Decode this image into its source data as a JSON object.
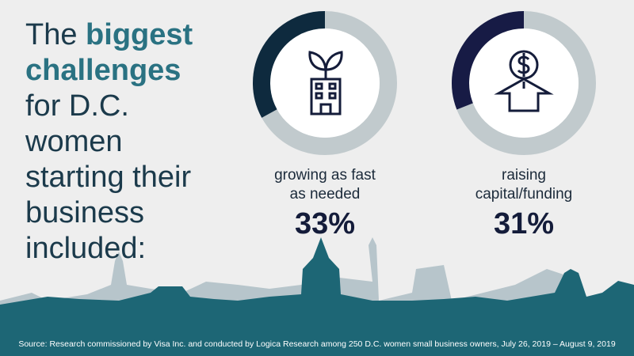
{
  "title": [
    "The",
    "biggest challenges",
    "for D.C. women starting their business included:"
  ],
  "chart_data": [
    {
      "type": "donut",
      "label": "growing as fast as needed",
      "values": [
        33
      ],
      "value_labels": [
        "33%"
      ],
      "color": "#0e2a3e",
      "rest_color": "#c1cacd"
    },
    {
      "type": "donut",
      "label": "raising capital/funding",
      "values": [
        31
      ],
      "value_labels": [
        "31%"
      ],
      "color": "#171b45",
      "rest_color": "#c1cacd"
    }
  ],
  "source": "Source:  Research commissioned by Visa Inc. and conducted by Logica Research among 250 D.C. women small business owners, July 26, 2019 – August 9, 2019"
}
